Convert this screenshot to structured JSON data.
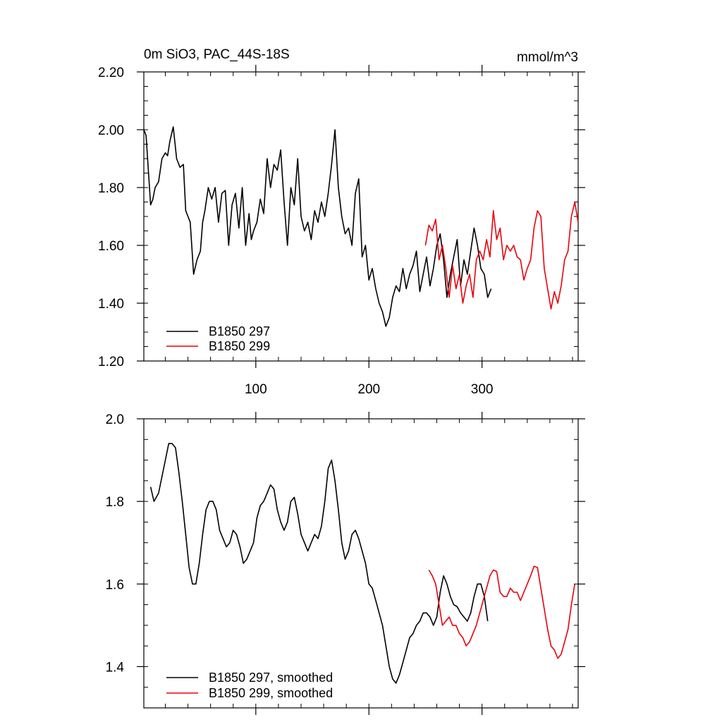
{
  "chart_data": [
    {
      "type": "line",
      "title": "0m SiO3, PAC_44S-18S",
      "units": "mmol/m^3",
      "xlabel": "",
      "ylabel": "",
      "xlim": [
        1,
        385
      ],
      "ylim": [
        1.2,
        2.2
      ],
      "x_ticks": [
        100,
        200,
        300
      ],
      "y_ticks": [
        1.2,
        1.4,
        1.6,
        1.8,
        2.0,
        2.2
      ],
      "y_tick_labels": [
        "1.20",
        "1.40",
        "1.60",
        "1.80",
        "2.00",
        "2.20"
      ],
      "grid": false,
      "legend": "bottom-left",
      "series": [
        {
          "name": "B1850 297",
          "color": "#000000",
          "x": [
            1,
            3,
            5,
            7,
            9,
            11,
            14,
            17,
            20,
            22,
            24,
            27,
            30,
            33,
            36,
            38,
            40,
            42,
            45,
            48,
            51,
            53,
            55,
            58,
            61,
            64,
            67,
            70,
            73,
            76,
            79,
            82,
            85,
            88,
            91,
            94,
            96,
            98,
            101,
            104,
            107,
            110,
            113,
            116,
            119,
            122,
            125,
            128,
            131,
            134,
            137,
            140,
            143,
            146,
            149,
            152,
            155,
            158,
            161,
            164,
            167,
            170,
            173,
            176,
            179,
            182,
            185,
            188,
            191,
            194,
            197,
            200,
            203,
            206,
            209,
            212,
            215,
            218,
            221,
            224,
            227,
            230,
            233,
            236,
            239,
            242,
            245,
            248,
            251,
            254,
            257,
            260,
            263,
            266,
            269,
            272,
            275,
            278,
            281,
            284,
            287,
            290,
            293,
            296,
            299,
            302,
            305,
            308
          ],
          "y": [
            2.0,
            1.98,
            1.86,
            1.74,
            1.76,
            1.8,
            1.82,
            1.9,
            1.92,
            1.91,
            1.96,
            2.01,
            1.9,
            1.87,
            1.88,
            1.72,
            1.7,
            1.68,
            1.5,
            1.55,
            1.58,
            1.68,
            1.72,
            1.8,
            1.76,
            1.8,
            1.68,
            1.78,
            1.79,
            1.6,
            1.74,
            1.78,
            1.66,
            1.8,
            1.6,
            1.71,
            1.62,
            1.65,
            1.68,
            1.76,
            1.71,
            1.9,
            1.8,
            1.88,
            1.86,
            1.93,
            1.75,
            1.6,
            1.8,
            1.74,
            1.9,
            1.7,
            1.65,
            1.68,
            1.62,
            1.72,
            1.68,
            1.75,
            1.7,
            1.78,
            1.88,
            2.0,
            1.8,
            1.7,
            1.64,
            1.66,
            1.6,
            1.78,
            1.83,
            1.56,
            1.6,
            1.48,
            1.52,
            1.45,
            1.4,
            1.37,
            1.32,
            1.35,
            1.42,
            1.46,
            1.44,
            1.52,
            1.45,
            1.5,
            1.53,
            1.58,
            1.44,
            1.5,
            1.56,
            1.46,
            1.52,
            1.6,
            1.64,
            1.55,
            1.42,
            1.5,
            1.56,
            1.62,
            1.46,
            1.55,
            1.5,
            1.58,
            1.66,
            1.6,
            1.52,
            1.5,
            1.42,
            1.45
          ]
        },
        {
          "name": "B1850 299",
          "color": "#e8000b",
          "x": [
            250,
            253,
            256,
            259,
            262,
            265,
            268,
            271,
            274,
            277,
            280,
            283,
            286,
            289,
            292,
            295,
            298,
            301,
            304,
            307,
            310,
            313,
            316,
            319,
            322,
            325,
            328,
            331,
            334,
            337,
            340,
            343,
            346,
            349,
            352,
            355,
            358,
            361,
            364,
            367,
            370,
            373,
            376,
            379,
            382,
            385
          ],
          "y": [
            1.6,
            1.67,
            1.65,
            1.69,
            1.55,
            1.6,
            1.52,
            1.42,
            1.53,
            1.45,
            1.5,
            1.4,
            1.46,
            1.5,
            1.42,
            1.55,
            1.58,
            1.55,
            1.62,
            1.56,
            1.72,
            1.62,
            1.66,
            1.55,
            1.6,
            1.58,
            1.6,
            1.56,
            1.55,
            1.48,
            1.52,
            1.55,
            1.66,
            1.72,
            1.7,
            1.52,
            1.45,
            1.38,
            1.44,
            1.4,
            1.46,
            1.55,
            1.58,
            1.7,
            1.75,
            1.68
          ]
        }
      ]
    },
    {
      "type": "line",
      "title": "",
      "xlabel": "",
      "ylabel": "",
      "xlim": [
        1,
        385
      ],
      "ylim": [
        1.3,
        2.0
      ],
      "x_ticks": [
        100,
        200,
        300
      ],
      "y_ticks": [
        1.4,
        1.6,
        1.8,
        2.0
      ],
      "y_tick_labels": [
        "1.4",
        "1.6",
        "1.8",
        "2.0"
      ],
      "grid": false,
      "legend": "bottom-left",
      "series": [
        {
          "name": "B1850 297, smoothed",
          "color": "#000000",
          "x": [
            7,
            10,
            14,
            17,
            20,
            23,
            26,
            29,
            32,
            35,
            38,
            41,
            44,
            47,
            50,
            53,
            56,
            59,
            62,
            65,
            68,
            71,
            74,
            77,
            80,
            83,
            86,
            89,
            92,
            95,
            98,
            101,
            104,
            107,
            110,
            113,
            116,
            119,
            122,
            125,
            128,
            131,
            134,
            137,
            140,
            143,
            146,
            149,
            152,
            155,
            158,
            161,
            164,
            167,
            170,
            173,
            176,
            179,
            182,
            185,
            188,
            191,
            194,
            197,
            200,
            203,
            206,
            209,
            212,
            215,
            218,
            221,
            224,
            227,
            230,
            233,
            236,
            239,
            242,
            245,
            248,
            251,
            254,
            257,
            260,
            263,
            266,
            269,
            272,
            275,
            278,
            281,
            284,
            287,
            290,
            293,
            296,
            299,
            302,
            305
          ],
          "y": [
            1.835,
            1.8,
            1.82,
            1.86,
            1.9,
            1.94,
            1.94,
            1.93,
            1.87,
            1.8,
            1.72,
            1.64,
            1.6,
            1.6,
            1.65,
            1.72,
            1.78,
            1.8,
            1.8,
            1.78,
            1.73,
            1.71,
            1.69,
            1.7,
            1.73,
            1.72,
            1.69,
            1.65,
            1.66,
            1.68,
            1.7,
            1.76,
            1.79,
            1.8,
            1.82,
            1.84,
            1.83,
            1.78,
            1.75,
            1.73,
            1.75,
            1.8,
            1.81,
            1.77,
            1.72,
            1.7,
            1.68,
            1.7,
            1.72,
            1.71,
            1.74,
            1.8,
            1.88,
            1.9,
            1.85,
            1.78,
            1.7,
            1.66,
            1.68,
            1.72,
            1.73,
            1.71,
            1.68,
            1.65,
            1.6,
            1.59,
            1.56,
            1.53,
            1.5,
            1.45,
            1.4,
            1.37,
            1.36,
            1.38,
            1.41,
            1.44,
            1.47,
            1.48,
            1.5,
            1.51,
            1.53,
            1.53,
            1.52,
            1.5,
            1.52,
            1.58,
            1.62,
            1.6,
            1.57,
            1.55,
            1.545,
            1.53,
            1.52,
            1.51,
            1.53,
            1.57,
            1.6,
            1.6,
            1.57,
            1.51
          ]
        },
        {
          "name": "B1850 299, smoothed",
          "color": "#e8000b",
          "x": [
            253,
            256,
            259,
            262,
            265,
            268,
            271,
            274,
            277,
            280,
            283,
            286,
            289,
            292,
            295,
            298,
            301,
            304,
            307,
            310,
            313,
            316,
            319,
            322,
            325,
            328,
            331,
            334,
            337,
            340,
            343,
            346,
            349,
            352,
            355,
            358,
            361,
            364,
            367,
            370,
            373,
            376,
            379,
            382
          ],
          "y": [
            1.634,
            1.62,
            1.6,
            1.55,
            1.5,
            1.51,
            1.52,
            1.5,
            1.5,
            1.48,
            1.47,
            1.45,
            1.46,
            1.48,
            1.5,
            1.53,
            1.56,
            1.59,
            1.62,
            1.634,
            1.63,
            1.58,
            1.57,
            1.57,
            1.59,
            1.58,
            1.58,
            1.56,
            1.58,
            1.6,
            1.62,
            1.643,
            1.64,
            1.59,
            1.54,
            1.49,
            1.45,
            1.44,
            1.42,
            1.43,
            1.46,
            1.49,
            1.55,
            1.6
          ]
        }
      ]
    }
  ]
}
